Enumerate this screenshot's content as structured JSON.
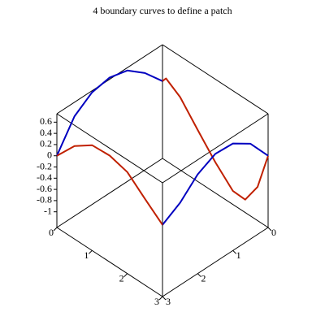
{
  "chart_data": {
    "type": "line3d",
    "title": "4 boundary curves to define a patch",
    "xlim": [
      0,
      3
    ],
    "ylim": [
      0,
      3
    ],
    "zlim": [
      -1.28,
      0.75
    ],
    "xticks": [
      0,
      1,
      2,
      3
    ],
    "yticks": [
      0,
      1,
      2,
      3
    ],
    "zticks": [
      0.6,
      0.4,
      0.2,
      0,
      -0.2,
      -0.4,
      -0.6,
      -0.8,
      -1
    ],
    "series": [
      {
        "color": "#0000c0",
        "x": [
          0,
          0,
          0,
          0,
          0,
          0,
          0
        ],
        "y": [
          3,
          2.5,
          2,
          1.5,
          1,
          0.5,
          0
        ],
        "z": [
          0,
          0.5,
          0.72,
          0.78,
          0.7,
          0.45,
          0.1
        ]
      },
      {
        "color": "#c02000",
        "x": [
          0,
          0.1,
          0.5,
          1,
          1.5,
          2,
          2.35,
          2.7,
          3
        ],
        "y": [
          0,
          0,
          0,
          0,
          0,
          0,
          0,
          0,
          0
        ],
        "z": [
          0.1,
          0.19,
          0.02,
          -0.36,
          -0.73,
          -1.04,
          -1.05,
          -0.68,
          0
        ]
      },
      {
        "color": "#0000c0",
        "x": [
          3,
          3,
          3,
          3,
          3,
          3,
          3
        ],
        "y": [
          3,
          2.5,
          2,
          1.5,
          1,
          0.5,
          0
        ],
        "z": [
          0,
          0.19,
          0.49,
          0.65,
          0.63,
          0.42,
          0
        ]
      },
      {
        "color": "#c02000",
        "x": [
          0,
          0.5,
          1,
          1.5,
          2,
          2.5,
          3
        ],
        "y": [
          3,
          3,
          3,
          3,
          3,
          3,
          3
        ],
        "z": [
          0,
          0.38,
          0.6,
          0.62,
          0.53,
          0.26,
          0
        ]
      }
    ]
  }
}
